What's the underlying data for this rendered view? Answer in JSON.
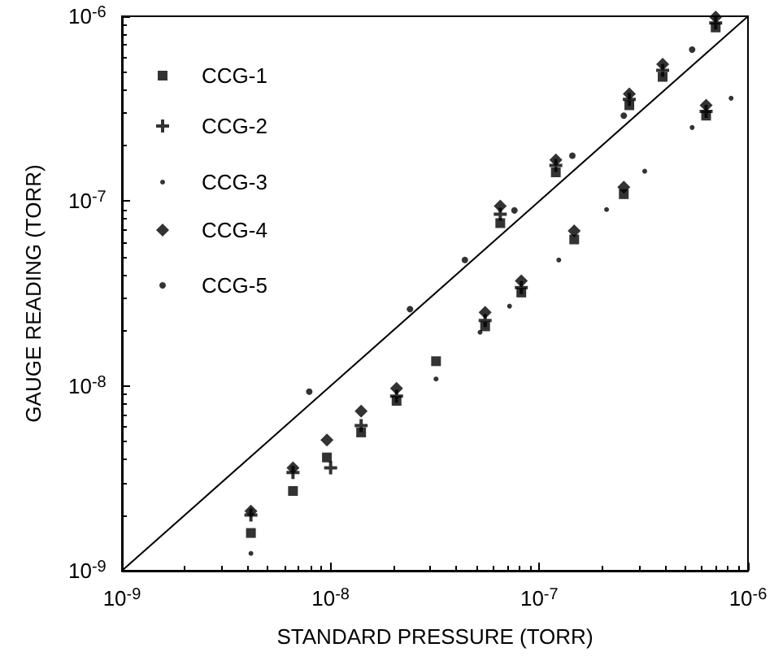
{
  "chart_data": {
    "type": "scatter",
    "xlabel": "STANDARD PRESSURE (TORR)",
    "ylabel": "GAUGE READING (TORR)",
    "log": "xy",
    "grid": false,
    "legend": "top left",
    "xlim": [
      1e-09,
      1e-06
    ],
    "ylim": [
      1e-09,
      1e-06
    ],
    "xticks": [
      {
        "value": 1e-09,
        "label": "10$^{-9}$"
      },
      {
        "value": 1e-08,
        "label": "10$^{-8}$"
      },
      {
        "value": 1e-07,
        "label": "10$^{-7}$"
      },
      {
        "value": 1e-06,
        "label": "10$^{-6}$"
      }
    ],
    "yticks": [
      {
        "value": 1e-09,
        "label": "10$^{-9}$"
      },
      {
        "value": 1e-08,
        "label": "10$^{-8}$"
      },
      {
        "value": 1e-07,
        "label": "10$^{-7}$"
      },
      {
        "value": 1e-06,
        "label": "10$^{-6}$"
      }
    ],
    "series": [
      {
        "name": "CCG-1",
        "color": "#000000",
        "marker": "square",
        "x": [
          4.15e-09,
          6.6e-09,
          9.6e-09,
          1.4e-08,
          2.07e-08,
          3.2e-08,
          5.5e-08,
          8.2e-08,
          1.47e-07,
          2.54e-07,
          6.3e-07,
          6.5e-08,
          1.2e-07,
          2.7e-07,
          3.9e-07,
          7e-07
        ],
        "values": [
          1.6e-09,
          2.7e-09,
          4.1e-09,
          5.6e-09,
          8.3e-09,
          1.36e-08,
          2.1e-08,
          3.2e-08,
          6.2e-08,
          1.09e-07,
          2.9e-07,
          7.6e-08,
          1.43e-07,
          3.3e-07,
          4.7e-07,
          8.7e-07
        ]
      },
      {
        "name": "CCG-2",
        "color": "#000000",
        "marker": "cross",
        "x": [
          4.15e-09,
          6.6e-09,
          1e-08,
          1.4e-08,
          2.07e-08,
          5.5e-08,
          8.2e-08,
          6.3e-07,
          6.5e-08,
          1.2e-07,
          2.7e-07,
          3.9e-07,
          7e-07
        ],
        "values": [
          2e-09,
          3.4e-09,
          3.6e-09,
          6.1e-09,
          8.8e-09,
          2.26e-08,
          3.4e-08,
          3.06e-07,
          8.5e-08,
          1.56e-07,
          3.55e-07,
          5.1e-07,
          9.2e-07
        ]
      },
      {
        "name": "CCG-3",
        "color": "#000000",
        "marker": "circle",
        "x": [
          4.15e-09,
          3.2e-08,
          5.2e-08,
          7.2e-08,
          1.24e-07,
          2.1e-07,
          3.2e-07,
          5.4e-07,
          8.3e-07
        ],
        "values": [
          1.24e-09,
          1.09e-08,
          1.95e-08,
          2.7e-08,
          4.8e-08,
          9e-08,
          1.45e-07,
          2.5e-07,
          3.6e-07
        ]
      },
      {
        "name": "CCG-4",
        "color": "#000000",
        "marker": "diamond",
        "x": [
          4.15e-09,
          6.6e-09,
          9.6e-09,
          1.4e-08,
          2.07e-08,
          5.5e-08,
          8.2e-08,
          1.47e-07,
          2.54e-07,
          6.3e-07,
          6.5e-08,
          1.2e-07,
          2.7e-07,
          3.9e-07,
          7e-07
        ],
        "values": [
          2.1e-09,
          3.6e-09,
          5.1e-09,
          7.3e-09,
          9.7e-09,
          2.5e-08,
          3.7e-08,
          6.9e-08,
          1.19e-07,
          3.3e-07,
          9.4e-08,
          1.67e-07,
          3.8e-07,
          5.5e-07,
          9.9e-07
        ]
      },
      {
        "name": "CCG-5",
        "color": "#000000",
        "marker": "circle",
        "x": [
          7.9e-09,
          2.4e-08,
          4.4e-08,
          7.6e-08,
          1.44e-07,
          2.54e-07,
          5.4e-07
        ],
        "values": [
          9.3e-09,
          2.6e-08,
          4.8e-08,
          8.9e-08,
          1.76e-07,
          2.9e-07,
          6.6e-07
        ]
      },
      {
        "type": "line",
        "color": "#000000",
        "marker": "none",
        "x": [
          1e-09,
          1e-06
        ],
        "values": [
          1e-09,
          1e-06
        ]
      }
    ]
  }
}
